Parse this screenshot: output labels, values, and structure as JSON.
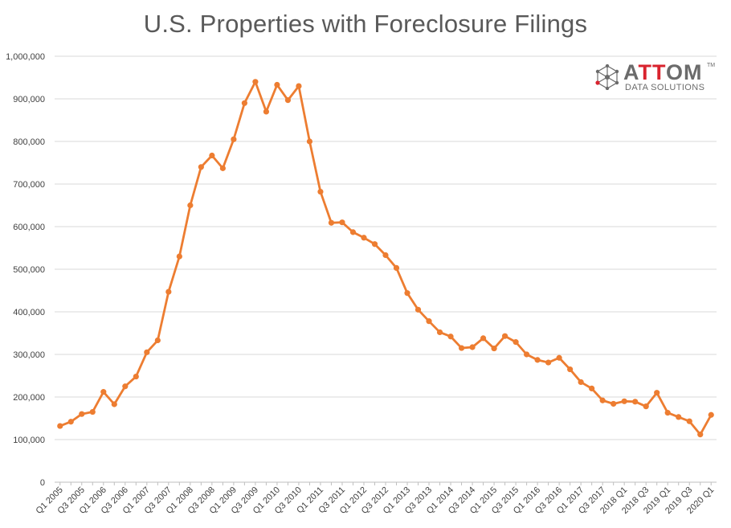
{
  "chart_data": {
    "type": "line",
    "title": "U.S. Properties with Foreclosure Filings",
    "ylim": [
      0,
      1000000
    ],
    "yticks": [
      0,
      100000,
      200000,
      300000,
      400000,
      500000,
      600000,
      700000,
      800000,
      900000,
      1000000
    ],
    "ytick_labels": [
      "0",
      "100,000",
      "200,000",
      "300,000",
      "400,000",
      "500,000",
      "600,000",
      "700,000",
      "800,000",
      "900,000",
      "1,000,000"
    ],
    "grid": true,
    "legend": "none",
    "line_color": "#ed7d31",
    "categories": [
      "Q1 2005",
      "Q2 2005",
      "Q3 2005",
      "Q4 2005",
      "Q1 2006",
      "Q2 2006",
      "Q3 2006",
      "Q4 2006",
      "Q1 2007",
      "Q2 2007",
      "Q3 2007",
      "Q4 2007",
      "Q1 2008",
      "Q2 2008",
      "Q3 2008",
      "Q4 2008",
      "Q1 2009",
      "Q2 2009",
      "Q3 2009",
      "Q4 2009",
      "Q1 2010",
      "Q2 2010",
      "Q3 2010",
      "Q4 2010",
      "Q1 2011",
      "Q2 2011",
      "Q3 2011",
      "Q4 2011",
      "Q1 2012",
      "Q2 2012",
      "Q3 2012",
      "Q4 2012",
      "Q1 2013",
      "Q2 2013",
      "Q3 2013",
      "Q4 2013",
      "Q1 2014",
      "Q2 2014",
      "Q3 2014",
      "Q4 2014",
      "Q1 2015",
      "Q2 2015",
      "Q3 2015",
      "Q4 2015",
      "Q1 2016",
      "Q2 2016",
      "Q3 2016",
      "Q4 2016",
      "Q1 2017",
      "Q2 2017",
      "Q3 2017",
      "Q4 2017",
      "2018 Q1",
      "2018 Q2",
      "2018 Q3",
      "2018 Q4",
      "2019 Q1",
      "2019 Q2",
      "2019 Q3",
      "2019 Q4",
      "2020 Q1"
    ],
    "tick_labels": [
      "Q1 2005",
      "",
      "Q3 2005",
      "",
      "Q1 2006",
      "",
      "Q3 2006",
      "",
      "Q1 2007",
      "",
      "Q3 2007",
      "",
      "Q1 2008",
      "",
      "Q3 2008",
      "",
      "Q1 2009",
      "",
      "Q3 2009",
      "",
      "Q1 2010",
      "",
      "Q3 2010",
      "",
      "Q1 2011",
      "",
      "Q3 2011",
      "",
      "Q1 2012",
      "",
      "Q3 2012",
      "",
      "Q1 2013",
      "",
      "Q3 2013",
      "",
      "Q1 2014",
      "",
      "Q3 2014",
      "",
      "Q1 2015",
      "",
      "Q3 2015",
      "",
      "Q1 2016",
      "",
      "Q3 2016",
      "",
      "Q1 2017",
      "",
      "Q3 2017",
      "",
      "2018 Q1",
      "",
      "2018 Q3",
      "",
      "2019 Q1",
      "",
      "2019 Q3",
      "",
      "2020 Q1"
    ],
    "values": [
      132000,
      142000,
      160000,
      165000,
      212000,
      183000,
      225000,
      248000,
      305000,
      333000,
      447000,
      530000,
      650000,
      740000,
      767000,
      737000,
      805000,
      890000,
      940000,
      870000,
      933000,
      897000,
      930000,
      800000,
      682000,
      609000,
      610000,
      587000,
      574000,
      559000,
      533000,
      503000,
      444000,
      405000,
      378000,
      352000,
      342000,
      315000,
      317000,
      338000,
      314000,
      343000,
      329000,
      300000,
      287000,
      281000,
      292000,
      265000,
      235000,
      220000,
      192000,
      184000,
      190000,
      189000,
      178000,
      210000,
      163000,
      153000,
      143000,
      112000,
      158000
    ]
  },
  "logo": {
    "brand_pre": "A",
    "brand_red": "TT",
    "brand_post": "OM",
    "tm": "TM",
    "subtitle": "DATA SOLUTIONS"
  }
}
